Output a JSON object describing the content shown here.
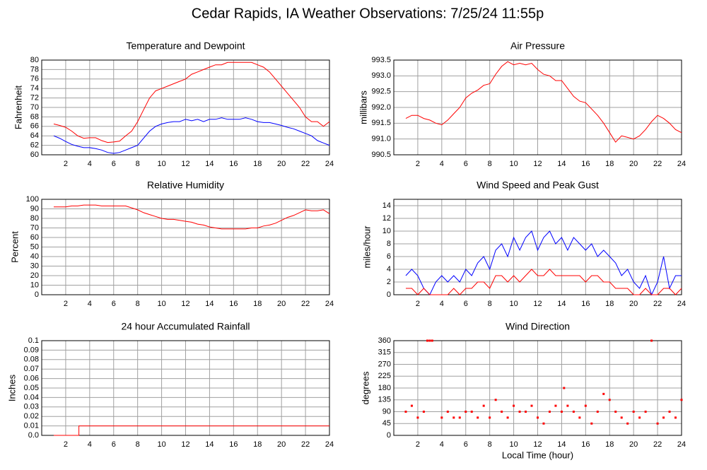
{
  "title": "Cedar Rapids, IA Weather Observations: 7/25/24 11:55p",
  "chart_data": [
    {
      "type": "line",
      "title": "Temperature and Dewpoint",
      "y_label": "Fahrenheit",
      "x": [
        1,
        1.5,
        2,
        2.5,
        3,
        3.5,
        4,
        4.5,
        5,
        5.5,
        6,
        6.5,
        7,
        7.5,
        8,
        8.5,
        9,
        9.5,
        10,
        10.5,
        11,
        11.5,
        12,
        12.5,
        13,
        13.5,
        14,
        14.5,
        15,
        15.5,
        16,
        16.5,
        17,
        17.5,
        18,
        18.5,
        19,
        19.5,
        20,
        20.5,
        21,
        21.5,
        22,
        22.5,
        23,
        23.5,
        24
      ],
      "series": [
        {
          "color": "#ff0000",
          "values": [
            66.5,
            66.2,
            65.8,
            65,
            64,
            63.5,
            63.6,
            63.6,
            63,
            62.6,
            62.7,
            62.9,
            64,
            65,
            67,
            69.5,
            72,
            73.5,
            74,
            74.5,
            75,
            75.5,
            76,
            77,
            77.5,
            78,
            78.5,
            79,
            79,
            79.5,
            79.5,
            79.5,
            79.5,
            79.5,
            79,
            78.5,
            77.5,
            76,
            74.5,
            73,
            71.5,
            70,
            68,
            67,
            67,
            66,
            67
          ]
        },
        {
          "color": "#0000ff",
          "values": [
            64,
            63.5,
            62.8,
            62.2,
            61.8,
            61.5,
            61.5,
            61.3,
            61,
            60.5,
            60.3,
            60.5,
            61,
            61.5,
            62,
            63.5,
            65,
            66,
            66.5,
            66.8,
            67,
            67,
            67.5,
            67.2,
            67.5,
            67,
            67.5,
            67.5,
            67.8,
            67.5,
            67.5,
            67.5,
            67.8,
            67.5,
            67,
            66.8,
            66.8,
            66.5,
            66.2,
            65.8,
            65.5,
            65,
            64.5,
            64,
            63,
            62.5,
            62
          ]
        }
      ],
      "xlim": [
        0,
        24
      ],
      "xticks": [
        2,
        4,
        6,
        8,
        10,
        12,
        14,
        16,
        18,
        20,
        22,
        24
      ],
      "ylim": [
        60,
        80
      ],
      "yticks": [
        60,
        62,
        64,
        66,
        68,
        70,
        72,
        74,
        76,
        78,
        80
      ],
      "grid": true
    },
    {
      "type": "line",
      "title": "Air Pressure",
      "y_label": "millibars",
      "x": [
        1,
        1.5,
        2,
        2.5,
        3,
        3.5,
        4,
        4.5,
        5,
        5.5,
        6,
        6.5,
        7,
        7.5,
        8,
        8.5,
        9,
        9.5,
        10,
        10.5,
        11,
        11.5,
        12,
        12.5,
        13,
        13.5,
        14,
        14.5,
        15,
        15.5,
        16,
        16.5,
        17,
        17.5,
        18,
        18.5,
        19,
        19.5,
        20,
        20.5,
        21,
        21.5,
        22,
        22.5,
        23,
        23.5,
        24
      ],
      "series": [
        {
          "color": "#ff0000",
          "values": [
            991.65,
            991.75,
            991.75,
            991.65,
            991.6,
            991.5,
            991.45,
            991.6,
            991.8,
            992,
            992.3,
            992.45,
            992.55,
            992.7,
            992.75,
            993.05,
            993.3,
            993.45,
            993.35,
            993.4,
            993.35,
            993.4,
            993.2,
            993.05,
            993,
            992.85,
            992.85,
            992.6,
            992.35,
            992.2,
            992.15,
            991.95,
            991.75,
            991.5,
            991.2,
            990.9,
            991.1,
            991.05,
            991,
            991.1,
            991.3,
            991.55,
            991.75,
            991.65,
            991.5,
            991.3,
            991.2
          ]
        }
      ],
      "xlim": [
        0,
        24
      ],
      "xticks": [
        2,
        4,
        6,
        8,
        10,
        12,
        14,
        16,
        18,
        20,
        22,
        24
      ],
      "ylim": [
        990.5,
        993.5
      ],
      "yticks": [
        990.5,
        {
          "value": 991,
          "label": "991.0"
        },
        991.5,
        {
          "value": 992,
          "label": "992.0"
        },
        992.5,
        {
          "value": 993,
          "label": "993.0"
        },
        993.5
      ],
      "grid": true
    },
    {
      "type": "line",
      "title": "Relative Humidity",
      "y_label": "Percent",
      "x": [
        1,
        1.5,
        2,
        2.5,
        3,
        3.5,
        4,
        4.5,
        5,
        5.5,
        6,
        6.5,
        7,
        7.5,
        8,
        8.5,
        9,
        9.5,
        10,
        10.5,
        11,
        11.5,
        12,
        12.5,
        13,
        13.5,
        14,
        14.5,
        15,
        15.5,
        16,
        16.5,
        17,
        17.5,
        18,
        18.5,
        19,
        19.5,
        20,
        20.5,
        21,
        21.5,
        22,
        22.5,
        23,
        23.5,
        24
      ],
      "series": [
        {
          "color": "#ff0000",
          "values": [
            92,
            92,
            92,
            93,
            93,
            94,
            94,
            94,
            93,
            93,
            93,
            93,
            93,
            91,
            89,
            86,
            84,
            82,
            80,
            79,
            79,
            78,
            77,
            76,
            74,
            73,
            71,
            70,
            69,
            69,
            69,
            69,
            69,
            70,
            70,
            72,
            73,
            75,
            78,
            81,
            83,
            86,
            89,
            88,
            88,
            89,
            85
          ]
        }
      ],
      "xlim": [
        0,
        24
      ],
      "xticks": [
        2,
        4,
        6,
        8,
        10,
        12,
        14,
        16,
        18,
        20,
        22,
        24
      ],
      "ylim": [
        0,
        100
      ],
      "yticks": [
        0,
        10,
        20,
        30,
        40,
        50,
        60,
        70,
        80,
        90,
        100
      ],
      "grid": true
    },
    {
      "type": "line",
      "title": "Wind Speed and Peak Gust",
      "y_label": "miles/hour",
      "x": [
        1,
        1.5,
        2,
        2.5,
        3,
        3.5,
        4,
        4.5,
        5,
        5.5,
        6,
        6.5,
        7,
        7.5,
        8,
        8.5,
        9,
        9.5,
        10,
        10.5,
        11,
        11.5,
        12,
        12.5,
        13,
        13.5,
        14,
        14.5,
        15,
        15.5,
        16,
        16.5,
        17,
        17.5,
        18,
        18.5,
        19,
        19.5,
        20,
        20.5,
        21,
        21.5,
        22,
        22.5,
        23,
        23.5,
        24
      ],
      "series": [
        {
          "color": "#0000ff",
          "values": [
            3,
            4,
            3,
            1,
            0,
            2,
            3,
            2,
            3,
            2,
            4,
            3,
            5,
            6,
            4,
            7,
            8,
            6,
            9,
            7,
            9,
            10,
            7,
            9,
            10,
            8,
            9,
            7,
            9,
            8,
            7,
            8,
            6,
            7,
            6,
            5,
            3,
            4,
            2,
            1,
            3,
            0,
            2,
            6,
            1,
            3,
            3
          ]
        },
        {
          "color": "#ff0000",
          "values": [
            1,
            1,
            0,
            1,
            0,
            0,
            0,
            0,
            1,
            0,
            1,
            1,
            2,
            2,
            1,
            3,
            3,
            2,
            3,
            2,
            3,
            4,
            3,
            3,
            4,
            3,
            3,
            3,
            3,
            3,
            2,
            3,
            3,
            2,
            2,
            1,
            1,
            1,
            0,
            0,
            1,
            0,
            0,
            1,
            1,
            0,
            1
          ]
        }
      ],
      "xlim": [
        0,
        24
      ],
      "xticks": [
        2,
        4,
        6,
        8,
        10,
        12,
        14,
        16,
        18,
        20,
        22,
        24
      ],
      "ylim": [
        0,
        15
      ],
      "yticks": [
        0,
        2,
        4,
        6,
        8,
        10,
        12,
        14
      ],
      "grid": true
    },
    {
      "type": "line",
      "title": "24 hour Accumulated Rainfall",
      "y_label": "Inches",
      "x": [
        1,
        3.1,
        3.1,
        24
      ],
      "series": [
        {
          "color": "#ff0000",
          "values": [
            0,
            0,
            0.01,
            0.01
          ]
        }
      ],
      "xlim": [
        0,
        24
      ],
      "xticks": [
        2,
        4,
        6,
        8,
        10,
        12,
        14,
        16,
        18,
        20,
        22,
        24
      ],
      "ylim": [
        0,
        0.1
      ],
      "yticks": [
        {
          "value": 0,
          "label": "0.0"
        },
        0.01,
        0.02,
        0.03,
        0.04,
        0.05,
        0.06,
        0.07,
        0.08,
        0.09,
        0.1
      ],
      "grid": true
    },
    {
      "type": "scatter",
      "title": "Wind Direction",
      "y_label": "degrees",
      "x_label": "Local Time (hour)",
      "x": [
        1,
        1.5,
        2,
        2.5,
        2.8,
        3,
        3.2,
        4,
        4.5,
        5,
        5.5,
        6,
        6.5,
        7,
        7.5,
        8,
        8.5,
        9,
        9.5,
        10,
        10.5,
        11,
        11.5,
        12,
        12.5,
        13,
        13.5,
        14,
        14.2,
        14.5,
        15,
        15.5,
        16,
        16.5,
        17,
        17.5,
        18,
        18.5,
        19,
        19.5,
        20,
        20.5,
        21,
        21.5,
        22,
        22.5,
        23,
        23.5,
        24
      ],
      "series": [
        {
          "color": "#ff0000",
          "values": [
            90,
            112.5,
            67.5,
            90,
            360,
            360,
            360,
            67.5,
            90,
            67.5,
            67.5,
            90,
            90,
            67.5,
            112.5,
            67.5,
            135,
            90,
            67.5,
            112.5,
            90,
            90,
            112.5,
            67.5,
            45,
            90,
            112.5,
            90,
            180,
            112.5,
            90,
            67.5,
            112.5,
            45,
            90,
            157.5,
            135,
            90,
            67.5,
            45,
            90,
            67.5,
            90,
            360,
            45,
            67.5,
            90,
            67.5,
            135
          ]
        }
      ],
      "xlim": [
        0,
        24
      ],
      "xticks": [
        2,
        4,
        6,
        8,
        10,
        12,
        14,
        16,
        18,
        20,
        22,
        24
      ],
      "ylim": [
        0,
        360
      ],
      "yticks": [
        0,
        45,
        90,
        135,
        180,
        225,
        270,
        315,
        360
      ],
      "grid": true
    }
  ]
}
